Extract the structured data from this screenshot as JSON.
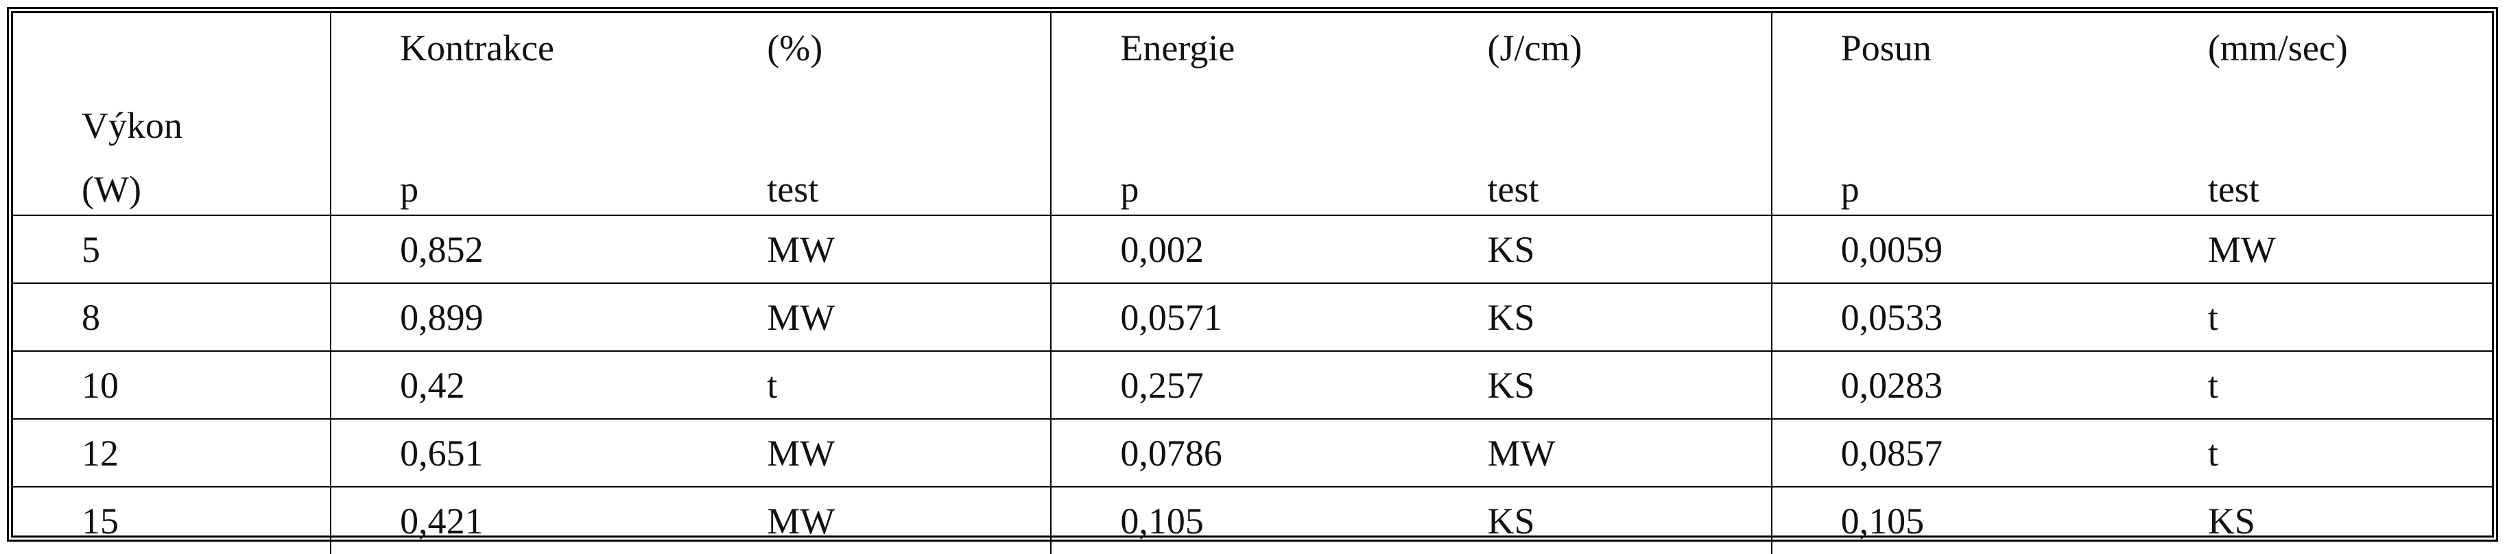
{
  "header": {
    "row_label": "Výkon",
    "row_unit": "(W)",
    "groups": [
      {
        "name": "Kontrakce",
        "unit": "(%)",
        "p_label": "p",
        "test_label": "test"
      },
      {
        "name": "Energie",
        "unit": "(J/cm)",
        "p_label": "p",
        "test_label": "test"
      },
      {
        "name": "Posun",
        "unit": "(mm/sec)",
        "p_label": "p",
        "test_label": "test"
      }
    ]
  },
  "table": {
    "rows": [
      [
        "5",
        "0,852",
        "MW",
        "0,002",
        "KS",
        "0,0059",
        "MW"
      ],
      [
        "8",
        "0,899",
        "MW",
        "0,0571",
        "KS",
        "0,0533",
        "t"
      ],
      [
        "10",
        "0,42",
        "t",
        "0,257",
        "KS",
        "0,0283",
        "t"
      ],
      [
        "12",
        "0,651",
        "MW",
        "0,0786",
        "MW",
        "0,0857",
        "t"
      ],
      [
        "15",
        "0,421",
        "MW",
        "0,105",
        "KS",
        "0,105",
        "KS"
      ]
    ]
  }
}
